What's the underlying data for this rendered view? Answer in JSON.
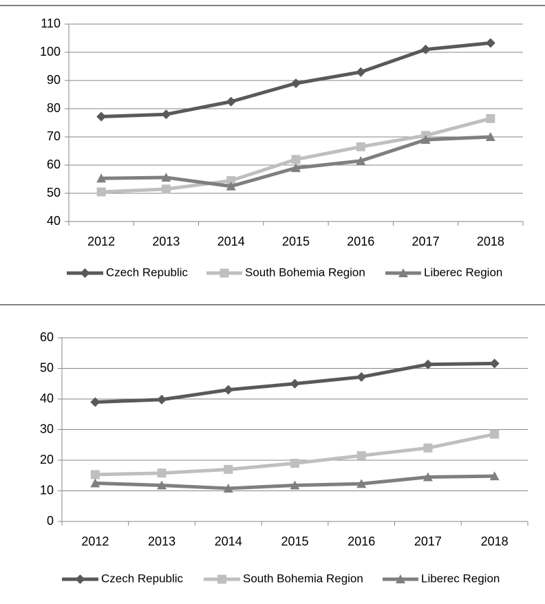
{
  "chart_data": [
    {
      "type": "line",
      "categories": [
        "2012",
        "2013",
        "2014",
        "2015",
        "2016",
        "2017",
        "2018"
      ],
      "ylim": [
        40,
        110
      ],
      "yticks": [
        40,
        50,
        60,
        70,
        80,
        90,
        100,
        110
      ],
      "grid": true,
      "legend": "bottom",
      "series": [
        {
          "name": "Czech Republic",
          "color": "#595959",
          "marker": "diamond",
          "values": [
            77.2,
            78,
            82.5,
            89,
            93,
            101,
            103.3
          ]
        },
        {
          "name": "South Bohemia Region",
          "color": "#bfbfbf",
          "marker": "square",
          "values": [
            50.5,
            51.5,
            54.5,
            62,
            66.5,
            70.5,
            76.5
          ]
        },
        {
          "name": "Liberec Region",
          "color": "#7f7f7f",
          "marker": "triangle",
          "values": [
            55.3,
            55.6,
            52.5,
            59,
            61.5,
            69,
            70
          ]
        }
      ]
    },
    {
      "type": "line",
      "categories": [
        "2012",
        "2013",
        "2014",
        "2015",
        "2016",
        "2017",
        "2018"
      ],
      "ylim": [
        0,
        60
      ],
      "yticks": [
        0,
        10,
        20,
        30,
        40,
        50,
        60
      ],
      "grid": true,
      "legend": "bottom",
      "series": [
        {
          "name": "Czech Republic",
          "color": "#595959",
          "marker": "diamond",
          "values": [
            39,
            39.8,
            43,
            45,
            47.2,
            51.3,
            51.6
          ]
        },
        {
          "name": "South Bohemia Region",
          "color": "#bfbfbf",
          "marker": "square",
          "values": [
            15.3,
            15.8,
            17,
            19,
            21.5,
            24,
            28.5
          ]
        },
        {
          "name": "Liberec Region",
          "color": "#7f7f7f",
          "marker": "triangle",
          "values": [
            12.5,
            11.8,
            10.8,
            11.8,
            12.3,
            14.5,
            14.8
          ]
        }
      ]
    }
  ]
}
